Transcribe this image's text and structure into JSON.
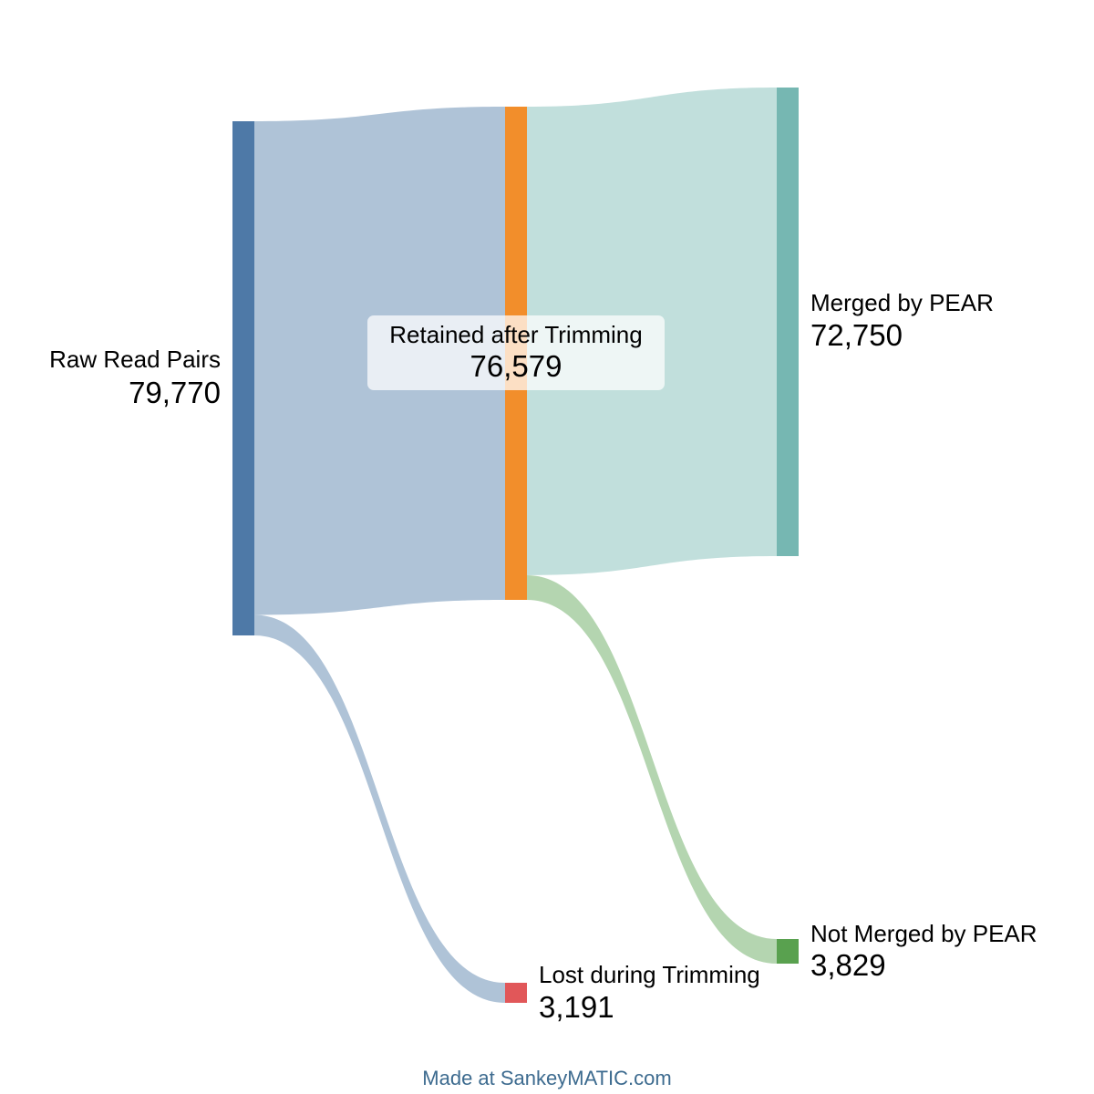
{
  "diagram": {
    "type": "sankey",
    "nodes": [
      {
        "id": "raw",
        "label": "Raw Read Pairs",
        "value": "79,770",
        "color": "#4e79a7"
      },
      {
        "id": "retained",
        "label": "Retained after Trimming",
        "value": "76,579",
        "color": "#f28e2b"
      },
      {
        "id": "lost",
        "label": "Lost during Trimming",
        "value": "3,191",
        "color": "#e15759"
      },
      {
        "id": "merged",
        "label": "Merged by PEAR",
        "value": "72,750",
        "color": "#76b7b2"
      },
      {
        "id": "notmerged",
        "label": "Not Merged by PEAR",
        "value": "3,829",
        "color": "#59a14f"
      }
    ],
    "flows": [
      {
        "source": "raw",
        "target": "retained",
        "amount": 76579
      },
      {
        "source": "raw",
        "target": "lost",
        "amount": 3191
      },
      {
        "source": "retained",
        "target": "merged",
        "amount": 72750
      },
      {
        "source": "retained",
        "target": "notmerged",
        "amount": 3829
      }
    ]
  },
  "footer": {
    "credit": "Made at SankeyMATIC.com",
    "credit_color": "#3d6b8f"
  }
}
